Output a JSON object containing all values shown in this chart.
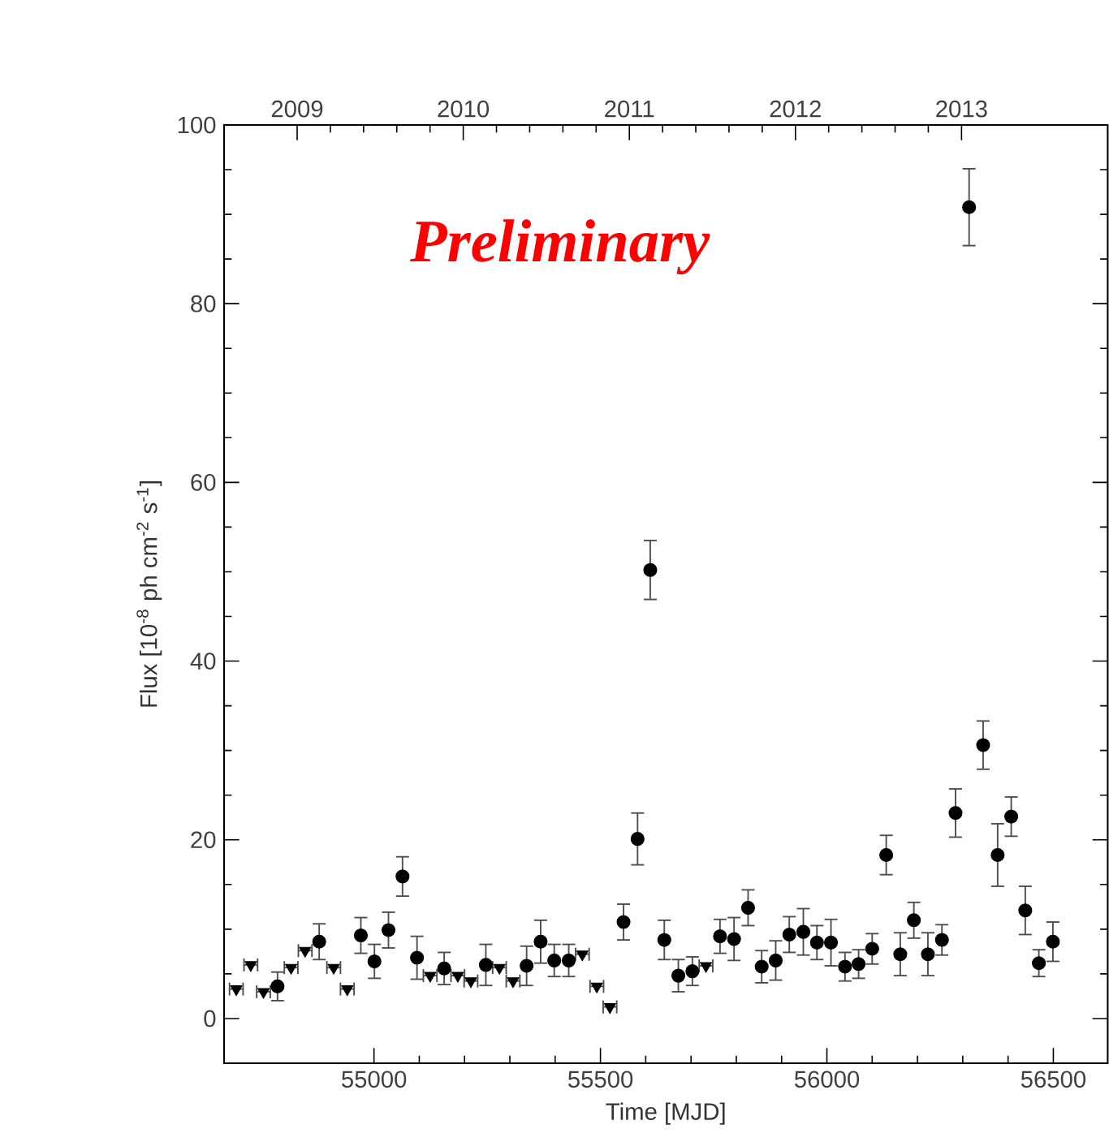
{
  "chart_data": {
    "type": "scatter",
    "xlabel": "Time [MJD]",
    "ylabel": "Flux [10$^{-8}$ ph cm$^{-2}$ s$^{-1}$]",
    "xlim": [
      54669,
      56620
    ],
    "xticks": [
      55000,
      55500,
      56000,
      56500
    ],
    "x2lim": [
      2008.56,
      2013.88
    ],
    "x2ticks": [
      2009,
      2010,
      2011,
      2012,
      2013
    ],
    "ylim": [
      -5,
      100
    ],
    "yticks": [
      0,
      20,
      40,
      60,
      80,
      100
    ],
    "grid": false,
    "annotations": [
      "Preliminary"
    ],
    "series": [
      {
        "color": "#000000",
        "marker": "circle",
        "x": [
          54787,
          54879,
          54971,
          55001,
          55032,
          55063,
          55095,
          55155,
          55247,
          55337,
          55368,
          55398,
          55430,
          55551,
          55582,
          55610,
          55641,
          55672,
          55703,
          55764,
          55795,
          55826,
          55856,
          55887,
          55917,
          55948,
          55978,
          56009,
          56040,
          56070,
          56100,
          56131,
          56162,
          56192,
          56223,
          56254,
          56284,
          56314,
          56345,
          56377,
          56407,
          56438,
          56468,
          56499
        ],
        "values": [
          3.6,
          8.6,
          9.3,
          6.4,
          9.9,
          15.9,
          6.8,
          5.6,
          6.0,
          5.9,
          8.6,
          6.5,
          6.5,
          10.8,
          20.1,
          50.2,
          8.8,
          4.8,
          5.3,
          9.2,
          8.9,
          12.4,
          5.8,
          6.5,
          9.4,
          9.7,
          8.5,
          8.5,
          5.8,
          6.1,
          7.8,
          18.3,
          7.2,
          11.0,
          7.2,
          8.8,
          23.0,
          90.8,
          30.6,
          18.3,
          22.6,
          12.1,
          6.2,
          8.6
        ],
        "errors": [
          1.6,
          2.0,
          2.0,
          1.9,
          2.0,
          2.2,
          2.4,
          1.8,
          2.3,
          2.2,
          2.4,
          1.8,
          1.8,
          2.0,
          2.9,
          3.3,
          2.2,
          1.8,
          1.6,
          1.9,
          2.4,
          2.0,
          1.8,
          2.2,
          2.0,
          2.6,
          1.9,
          2.6,
          1.6,
          1.6,
          1.7,
          2.2,
          2.4,
          2.0,
          2.4,
          1.7,
          2.7,
          4.3,
          2.7,
          3.5,
          2.2,
          2.7,
          1.5,
          2.2
        ]
      },
      {
        "color": "#000000",
        "marker": "triangle",
        "x": [
          54696,
          54728,
          54756,
          54817,
          54848,
          54911,
          54941,
          55124,
          55185,
          55214,
          55277,
          55307,
          55460,
          55492,
          55521,
          55733
        ],
        "values": [
          3.3,
          6.0,
          3.0,
          5.7,
          7.6,
          5.7,
          3.3,
          4.8,
          4.8,
          4.2,
          5.7,
          4.2,
          7.2,
          3.6,
          1.3,
          5.9
        ],
        "xerrors": [
          15,
          15,
          15,
          15,
          15,
          15,
          15,
          15,
          15,
          15,
          15,
          15,
          15,
          15,
          15,
          15
        ]
      }
    ]
  }
}
